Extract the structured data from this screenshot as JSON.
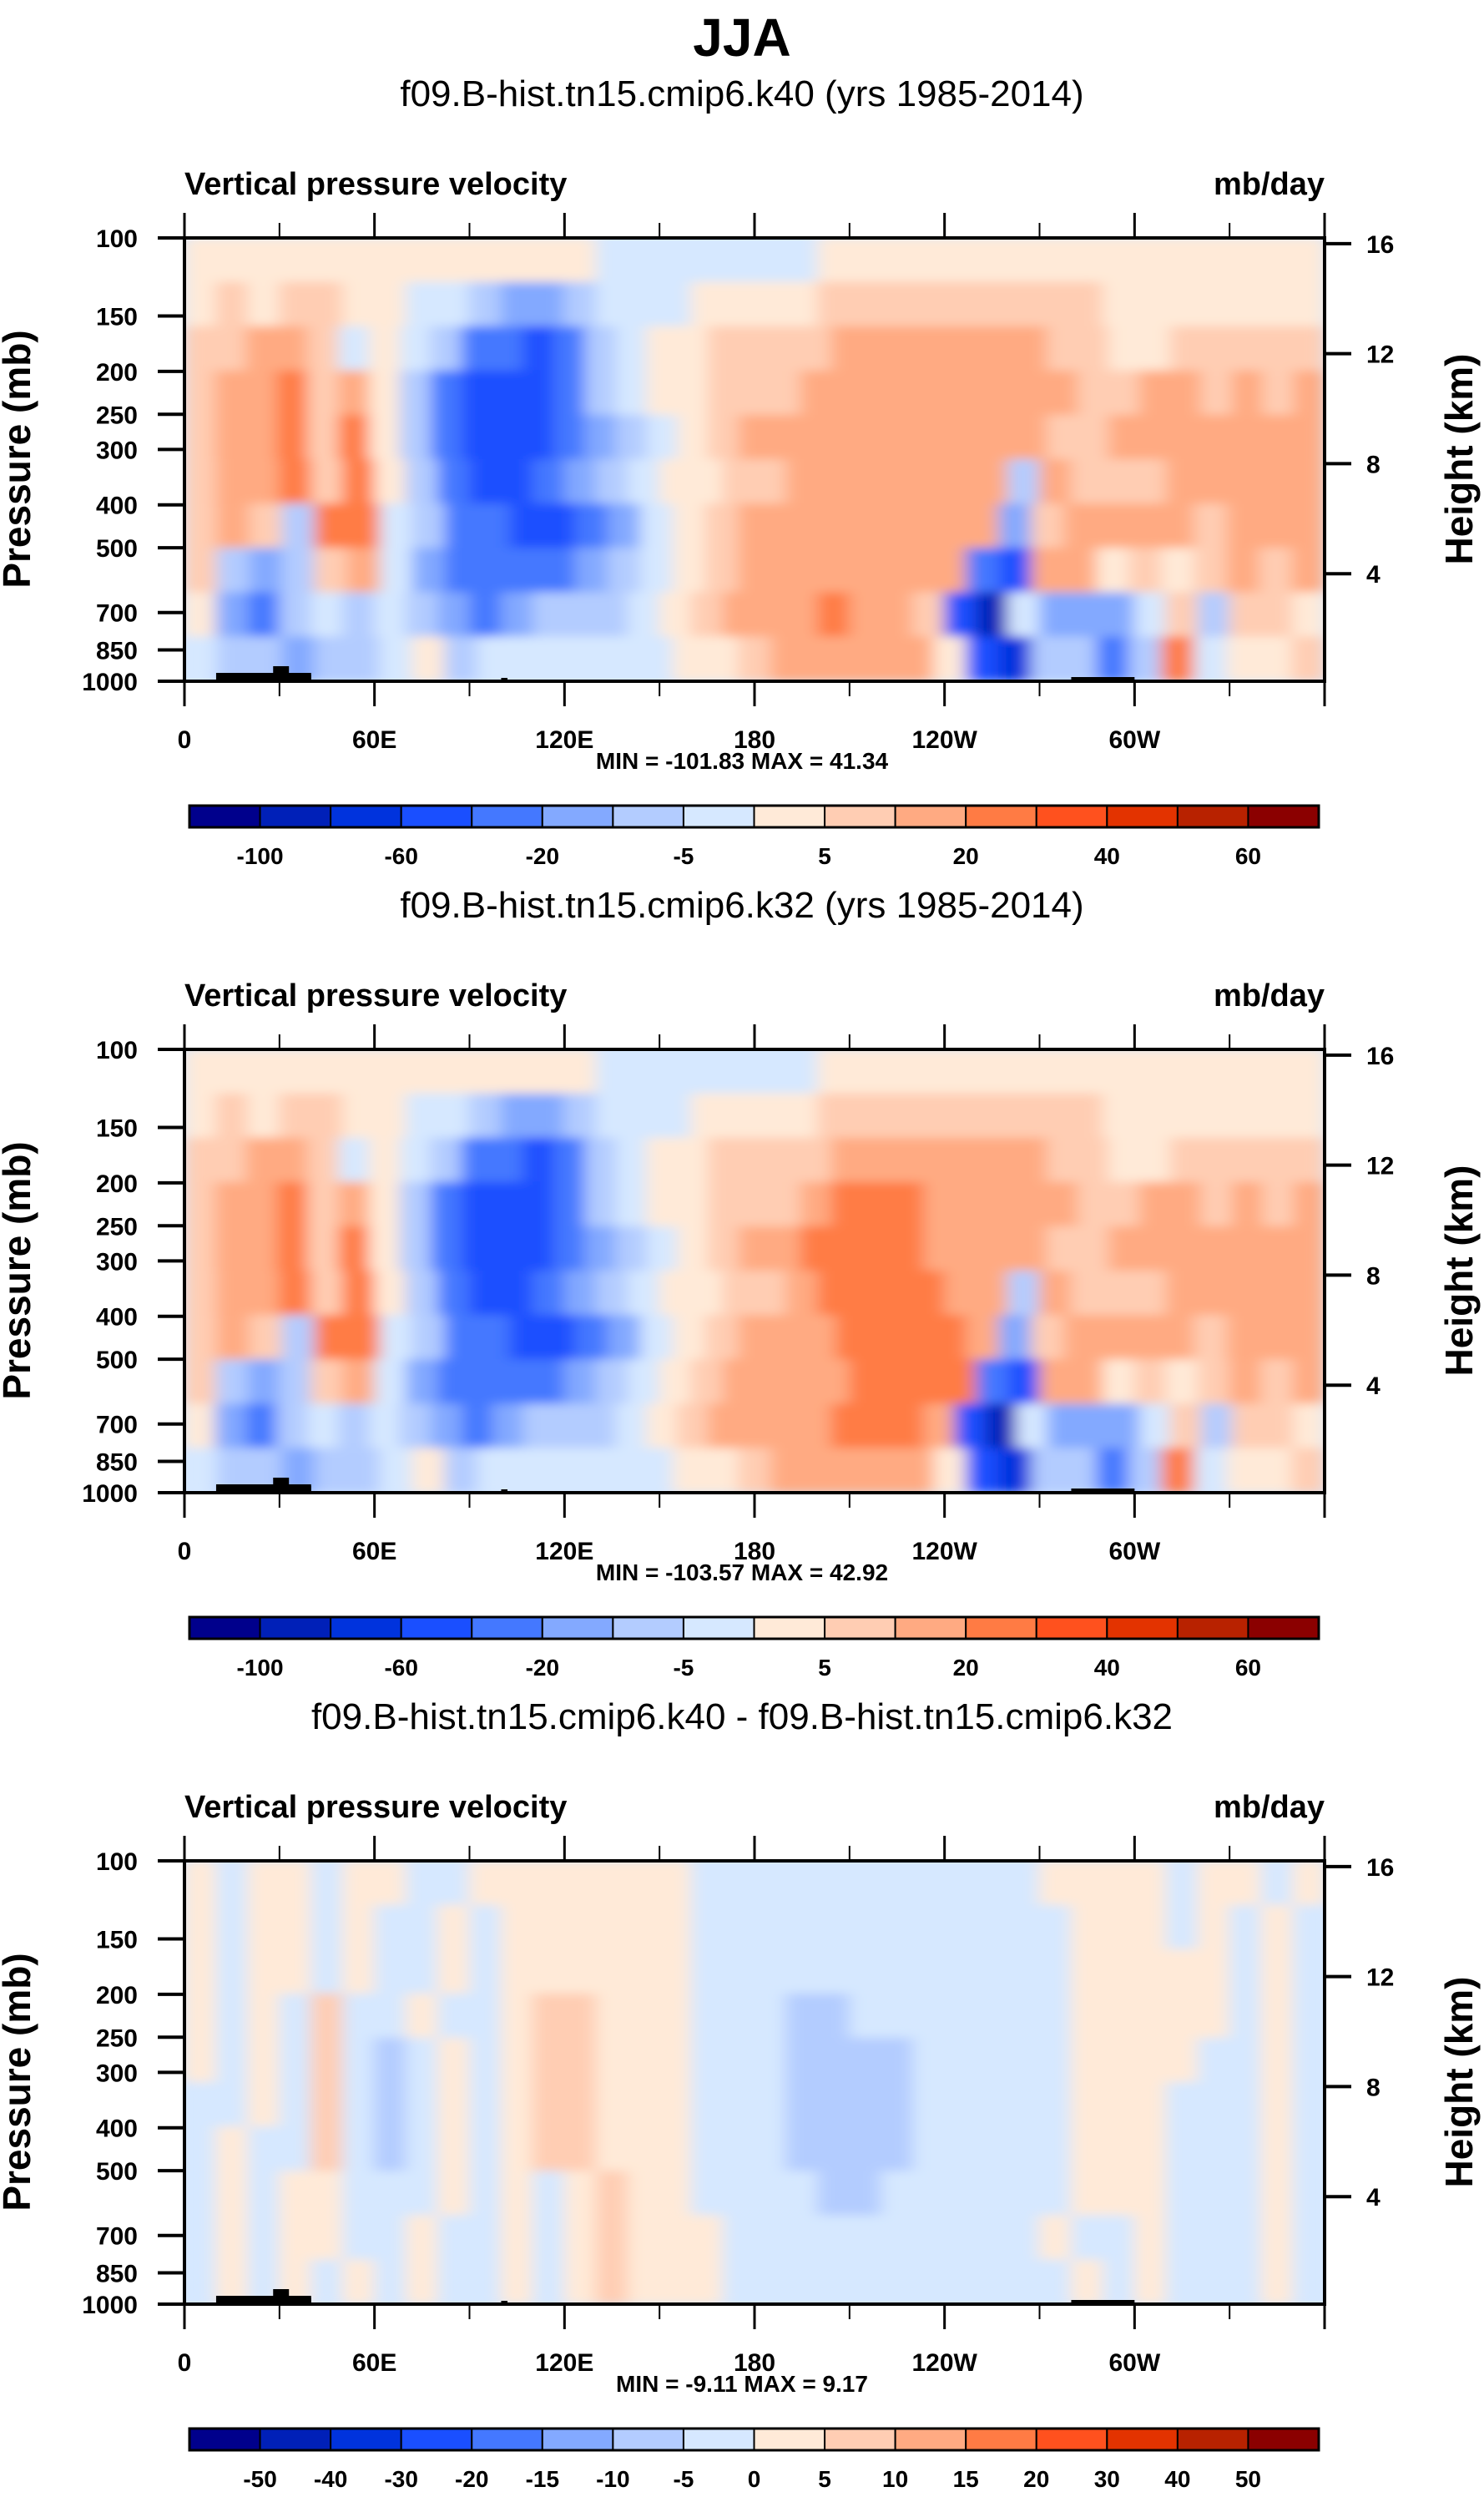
{
  "figure_title": "JJA",
  "chart_data": [
    {
      "type": "heatmap",
      "title": "f09.B-hist.tn15.cmip6.k40 (yrs 1985-2014)",
      "left_string": "Vertical pressure velocity",
      "right_string": "mb/day",
      "ylabel": "Pressure (mb)",
      "ylabel_right": "Height (km)",
      "x_ticks": [
        "0",
        "60E",
        "120E",
        "180",
        "120W",
        "60W"
      ],
      "y_ticks": [
        "100",
        "150",
        "200",
        "250",
        "300",
        "400",
        "500",
        "700",
        "850",
        "1000"
      ],
      "y_ticks_right": [
        "16",
        "12",
        "8",
        "4"
      ],
      "minmax": "MIN = -101.83  MAX =  41.34",
      "colorbar_labels": [
        "-100",
        "-60",
        "-20",
        "-5",
        "5",
        "20",
        "40",
        "60"
      ],
      "levels": [
        -100,
        -80,
        -60,
        -40,
        -20,
        -10,
        -5,
        0,
        5,
        10,
        20,
        30,
        40,
        50,
        60
      ],
      "min": -101.83,
      "max": 41.34,
      "grid": [
        "888888888888877777778888888888888888",
        "898998877655677788889999999998888888",
        "99aa97876443467889999aaaaaaa998899999",
        "9aab9a86433346788999aaaaaaaaa99aa9a9a",
        "9aab9b864333456789aaaaaaaaaa99aaaaaaa",
        "9aab9b8643345678899aaaaaaa6a999aaaaa",
        "9a96bb76443345789aaaaaaaa59aaaa9aaa",
        "96569a75444456789aaaaaaa43aa8989a9a",
        "85467676545666789aaabaa9317555796998",
        "766566786777777889aaaaa8326646b7889"
      ]
    },
    {
      "type": "heatmap",
      "title": "f09.B-hist.tn15.cmip6.k32 (yrs 1985-2014)",
      "left_string": "Vertical pressure velocity",
      "right_string": "mb/day",
      "ylabel": "Pressure (mb)",
      "ylabel_right": "Height (km)",
      "x_ticks": [
        "0",
        "60E",
        "120E",
        "180",
        "120W",
        "60W"
      ],
      "y_ticks": [
        "100",
        "150",
        "200",
        "250",
        "300",
        "400",
        "500",
        "700",
        "850",
        "1000"
      ],
      "y_ticks_right": [
        "16",
        "12",
        "8",
        "4"
      ],
      "minmax": "MIN = -103.57  MAX =  42.92",
      "colorbar_labels": [
        "-100",
        "-60",
        "-20",
        "-5",
        "5",
        "20",
        "40",
        "60"
      ],
      "levels": [
        -100,
        -80,
        -60,
        -40,
        -20,
        -10,
        -5,
        0,
        5,
        10,
        20,
        30,
        40,
        50,
        60
      ],
      "min": -103.57,
      "max": 42.92,
      "grid": [
        "888888888888877777778888888888888888",
        "898998877655677788889999999998888888",
        "99aa97876443467889999aaaaaaa998899999",
        "9aab9a86433346788999abbbaaaaa99aa9a9a",
        "9aab9b864333456789aabbbbaaaa99aaaaaaa",
        "9aab9b8643345678899abbbbaa6a999aaaaa",
        "9a96bb76443345789aaabbbba59aaaa9aaa",
        "96569a75444456789aaaabbbb43aa8989a9a",
        "85467676545666789aaaabbba317555796998",
        "766566786777777889aaaaa8326646b7889"
      ]
    },
    {
      "type": "heatmap",
      "title": "f09.B-hist.tn15.cmip6.k40 - f09.B-hist.tn15.cmip6.k32",
      "left_string": "Vertical pressure velocity",
      "right_string": "mb/day",
      "ylabel": "Pressure (mb)",
      "ylabel_right": "Height (km)",
      "x_ticks": [
        "0",
        "60E",
        "120E",
        "180",
        "120W",
        "60W"
      ],
      "y_ticks": [
        "100",
        "150",
        "200",
        "250",
        "300",
        "400",
        "500",
        "700",
        "850",
        "1000"
      ],
      "y_ticks_right": [
        "16",
        "12",
        "8",
        "4"
      ],
      "minmax": "MIN = -9.11  MAX =  9.17",
      "colorbar_labels": [
        "-50",
        "-40",
        "-30",
        "-20",
        "-15",
        "-10",
        "-5",
        "0",
        "5",
        "10",
        "15",
        "20",
        "30",
        "40",
        "50"
      ],
      "levels": [
        -50,
        -40,
        -30,
        -20,
        -15,
        -10,
        -5,
        0,
        5,
        10,
        15,
        20,
        30,
        40,
        50
      ],
      "min": -9.11,
      "max": 9.17,
      "grid": [
        "878878877888888877777777777888878878",
        "878878778788888877777777777788878787",
        "878878778788888877777777777788888787",
        "878797787789988877766777777788888787",
        "878797678789988877766667777788887787",
        "778797678789988877766667777788877787",
        "787797678789988877766667777788877787",
        "787887778787898877776677777788877787",
        "787887787787898887777777777877877787",
        "787878787787898887777777777787877787"
      ]
    }
  ],
  "colors": [
    "#00008c",
    "#0020b8",
    "#0033dd",
    "#1a4fff",
    "#4478ff",
    "#83a9ff",
    "#b3ccff",
    "#d6e8ff",
    "#ffead8",
    "#ffcdb3",
    "#ffaa82",
    "#ff7b44",
    "#ff511e",
    "#e33300",
    "#b82200",
    "#8b0000"
  ],
  "terrain_color": "#000000"
}
